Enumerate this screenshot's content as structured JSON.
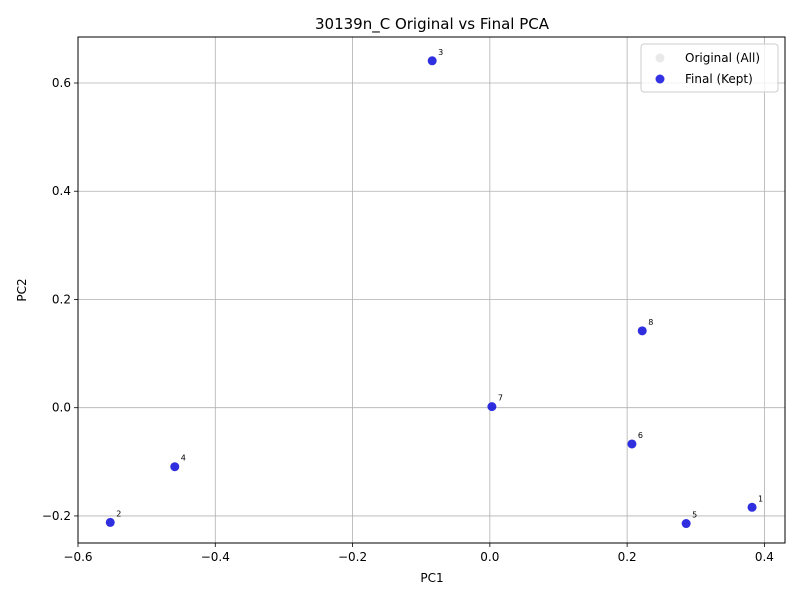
{
  "chart_data": {
    "type": "scatter",
    "title": "30139n_C Original vs Final PCA",
    "xlabel": "PC1",
    "ylabel": "PC2",
    "xlim": [
      -0.6,
      0.43
    ],
    "ylim": [
      -0.25,
      0.685
    ],
    "xticks": [
      -0.6,
      -0.4,
      -0.2,
      0.0,
      0.2,
      0.4
    ],
    "xtick_labels": [
      "−0.6",
      "−0.4",
      "−0.2",
      "0.0",
      "0.2",
      "0.4"
    ],
    "yticks": [
      -0.2,
      0.0,
      0.2,
      0.4,
      0.6
    ],
    "ytick_labels": [
      "−0.2",
      "0.0",
      "0.2",
      "0.4",
      "0.6"
    ],
    "grid": true,
    "legend_position": "top-right",
    "series": [
      {
        "name": "Original (All)",
        "color": "#d3d3d3",
        "points": [
          {
            "label": "1",
            "x": 0.382,
            "y": -0.184
          },
          {
            "label": "2",
            "x": -0.553,
            "y": -0.212
          },
          {
            "label": "3",
            "x": -0.084,
            "y": 0.641
          },
          {
            "label": "4",
            "x": -0.459,
            "y": -0.109
          },
          {
            "label": "5",
            "x": 0.286,
            "y": -0.214
          },
          {
            "label": "6",
            "x": 0.207,
            "y": -0.067
          },
          {
            "label": "7",
            "x": 0.003,
            "y": 0.002
          },
          {
            "label": "8",
            "x": 0.222,
            "y": 0.142
          }
        ]
      },
      {
        "name": "Final (Kept)",
        "color": "#0000dd",
        "points": [
          {
            "label": "1",
            "x": 0.382,
            "y": -0.184
          },
          {
            "label": "2",
            "x": -0.553,
            "y": -0.212
          },
          {
            "label": "3",
            "x": -0.084,
            "y": 0.641
          },
          {
            "label": "4",
            "x": -0.459,
            "y": -0.109
          },
          {
            "label": "5",
            "x": 0.286,
            "y": -0.214
          },
          {
            "label": "6",
            "x": 0.207,
            "y": -0.067
          },
          {
            "label": "7",
            "x": 0.003,
            "y": 0.002
          },
          {
            "label": "8",
            "x": 0.222,
            "y": 0.142
          }
        ]
      }
    ]
  }
}
